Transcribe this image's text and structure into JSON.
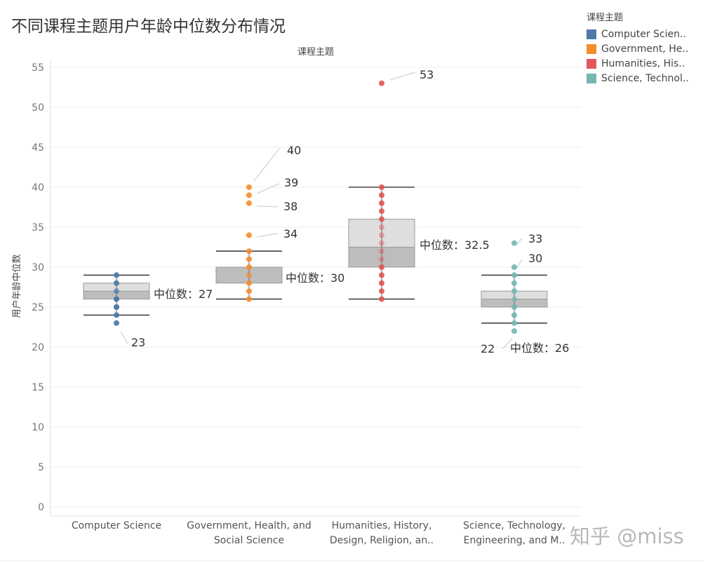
{
  "title": "不同课程主题用户年龄中位数分布情况",
  "watermark": "知乎 @miss",
  "legend": {
    "title": "课程主题",
    "items": [
      {
        "label": "Computer Scien..",
        "color": "#4e79a7"
      },
      {
        "label": "Government, He..",
        "color": "#f28e2b"
      },
      {
        "label": "Humanities, His..",
        "color": "#e15759"
      },
      {
        "label": "Science, Technol..",
        "color": "#76b7b2"
      }
    ]
  },
  "chart_data": {
    "type": "box",
    "title": "不同课程主题用户年龄中位数分布情况",
    "header": "课程主题",
    "ylabel": "用户年龄中位数",
    "ylim": [
      0,
      55
    ],
    "yticks": [
      "0",
      "5",
      "10",
      "15",
      "20",
      "25",
      "30",
      "35",
      "40",
      "45",
      "50",
      "55"
    ],
    "grid": true,
    "legend_position": "top-right",
    "categories": [
      {
        "name_lines": [
          "Computer Science"
        ],
        "color": "#4e79a7",
        "points": [
          23,
          24,
          25,
          25,
          26,
          26,
          27,
          27,
          28,
          29
        ],
        "whisker_low": 24,
        "q1": 26,
        "median": 27,
        "q3": 28,
        "whisker_high": 29,
        "median_label": "中位数：27",
        "outlier_labels": [
          "23"
        ]
      },
      {
        "name_lines": [
          "Government, Health, and",
          "Social Science"
        ],
        "color": "#f28e2b",
        "points": [
          26,
          27,
          28,
          29,
          29,
          30,
          31,
          32,
          34,
          38,
          39,
          40
        ],
        "whisker_low": 26,
        "q1": 28,
        "median": 30,
        "q3": 30,
        "whisker_high": 32,
        "median_label": "中位数：30",
        "outlier_labels": [
          "40",
          "39",
          "38",
          "34"
        ]
      },
      {
        "name_lines": [
          "Humanities, History,",
          "Design, Religion, an.."
        ],
        "color": "#e15759",
        "points": [
          26,
          27,
          28,
          29,
          30,
          31,
          32,
          33,
          34,
          35,
          36,
          37,
          38,
          39,
          40,
          53
        ],
        "whisker_low": 26,
        "q1": 30,
        "median": 32.5,
        "q3": 36,
        "whisker_high": 40,
        "median_label": "中位数：32.5",
        "outlier_labels": [
          "53"
        ]
      },
      {
        "name_lines": [
          "Science, Technology,",
          "Engineering, and M.."
        ],
        "color": "#76b7b2",
        "points": [
          22,
          23,
          24,
          25,
          26,
          26,
          27,
          28,
          29,
          30,
          33
        ],
        "whisker_low": 23,
        "q1": 25,
        "median": 26,
        "q3": 27,
        "whisker_high": 29,
        "median_label": "中位数：26",
        "outlier_labels": [
          "33",
          "30",
          "22"
        ]
      }
    ]
  }
}
